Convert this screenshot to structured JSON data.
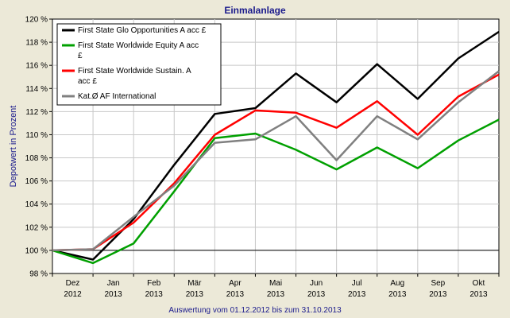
{
  "chart_data": {
    "type": "line",
    "title": "Einmalanlage",
    "ylabel": "Depotwert in Prozent",
    "xlabel": "Auswertung vom 01.12.2012 bis zum 31.10.2013",
    "ylim": [
      98,
      120
    ],
    "yticks": [
      98,
      100,
      102,
      104,
      106,
      108,
      110,
      112,
      114,
      116,
      118,
      120
    ],
    "ytick_labels": [
      "98 %",
      "100 %",
      "102 %",
      "104 %",
      "106 %",
      "108 %",
      "110 %",
      "112 %",
      "114 %",
      "116 %",
      "118 %",
      "120 %"
    ],
    "categories": [
      {
        "month": "Dez",
        "year": "2012"
      },
      {
        "month": "Jan",
        "year": "2013"
      },
      {
        "month": "Feb",
        "year": "2013"
      },
      {
        "month": "Mär",
        "year": "2013"
      },
      {
        "month": "Apr",
        "year": "2013"
      },
      {
        "month": "Mai",
        "year": "2013"
      },
      {
        "month": "Jun",
        "year": "2013"
      },
      {
        "month": "Jul",
        "year": "2013"
      },
      {
        "month": "Aug",
        "year": "2013"
      },
      {
        "month": "Sep",
        "year": "2013"
      },
      {
        "month": "Okt",
        "year": "2013"
      }
    ],
    "x": [
      0,
      1,
      2,
      3,
      4,
      5,
      6,
      7,
      8,
      9,
      10,
      11
    ],
    "reference_line": 100,
    "series": [
      {
        "name": "First State Glo Opportunities A acc £",
        "legend_lines": [
          "First State Glo Opportunities A acc £"
        ],
        "color": "#000000",
        "values": [
          100.0,
          99.2,
          102.7,
          107.4,
          111.8,
          112.3,
          115.3,
          112.8,
          116.1,
          113.1,
          116.6,
          118.9
        ]
      },
      {
        "name": "First State Worldwide Equity A acc £",
        "legend_lines": [
          "First State Worldwide Equity A acc",
          "£"
        ],
        "color": "#00a000",
        "values": [
          100.0,
          98.9,
          100.6,
          105.1,
          109.7,
          110.1,
          108.7,
          107.0,
          108.9,
          107.1,
          109.5,
          111.3
        ]
      },
      {
        "name": "First State Worldwide Sustain. A acc £",
        "legend_lines": [
          "First State Worldwide Sustain. A",
          "acc £"
        ],
        "color": "#ff0000",
        "values": [
          100.0,
          100.1,
          102.4,
          105.8,
          110.0,
          112.1,
          111.9,
          110.6,
          112.9,
          110.0,
          113.3,
          115.2
        ]
      },
      {
        "name": "Kat.Ø AF International",
        "legend_lines": [
          "Kat.Ø AF International"
        ],
        "color": "#808080",
        "values": [
          100.0,
          100.1,
          102.9,
          105.6,
          109.3,
          109.6,
          111.6,
          107.8,
          111.6,
          109.6,
          112.8,
          115.5
        ]
      }
    ]
  }
}
